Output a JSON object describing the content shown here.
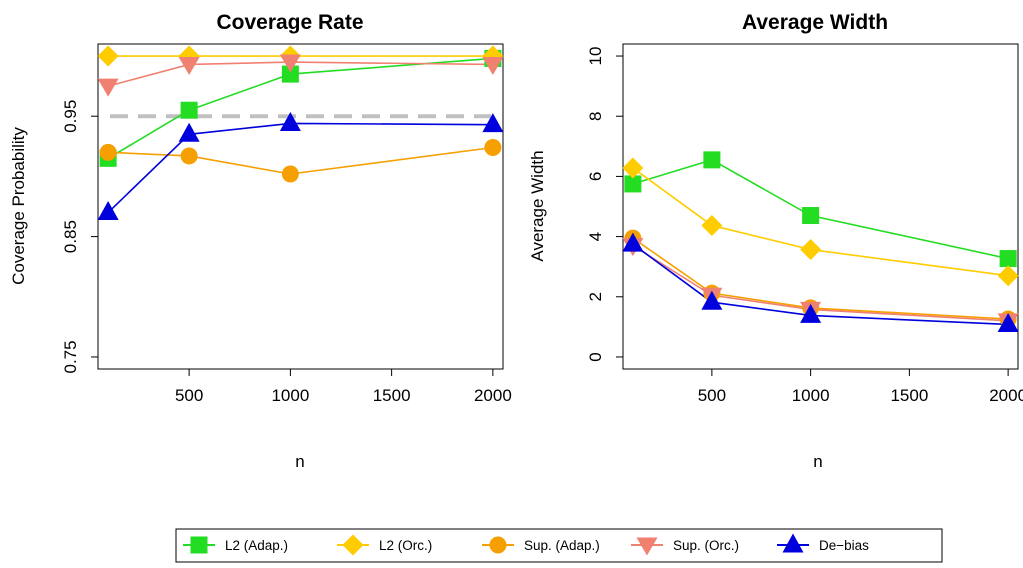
{
  "chart_data": [
    {
      "type": "line",
      "title": "Coverage Rate",
      "xlabel": "n",
      "ylabel": "Coverage Probability",
      "x": [
        100,
        500,
        1000,
        2000
      ],
      "xlim": [
        50,
        2050
      ],
      "ylim": [
        0.75,
        1.0
      ],
      "xticks": [
        500,
        1000,
        1500,
        2000
      ],
      "xtick_labels": [
        "500",
        "1000",
        "1500",
        "2000"
      ],
      "yticks": [
        0.75,
        0.85,
        0.95
      ],
      "ytick_labels": [
        "0.75",
        "0.85",
        "0.95"
      ],
      "reference_line": {
        "y": 0.95,
        "style": "dashed",
        "color": "#c0c0c0"
      },
      "series": [
        {
          "name": "L2 (Adap.)",
          "color": "#22dd22",
          "marker": "square",
          "values": [
            0.915,
            0.955,
            0.985,
            0.998
          ]
        },
        {
          "name": "L2 (Orc.)",
          "color": "#ffcc00",
          "marker": "diamond",
          "values": [
            1.0,
            1.0,
            1.0,
            1.0
          ]
        },
        {
          "name": "Sup. (Adap.)",
          "color": "#f5a000",
          "marker": "circle",
          "values": [
            0.92,
            0.917,
            0.902,
            0.924
          ]
        },
        {
          "name": "Sup. (Orc.)",
          "color": "#f08070",
          "marker": "triangle-down",
          "values": [
            0.975,
            0.993,
            0.995,
            0.993
          ]
        },
        {
          "name": "De−bias",
          "color": "#0000dd",
          "marker": "triangle-up",
          "values": [
            0.87,
            0.935,
            0.944,
            0.943
          ]
        }
      ]
    },
    {
      "type": "line",
      "title": "Average Width",
      "xlabel": "n",
      "ylabel": "Average Width",
      "x": [
        100,
        500,
        1000,
        2000
      ],
      "xlim": [
        50,
        2050
      ],
      "ylim": [
        0,
        10
      ],
      "xticks": [
        500,
        1000,
        1500,
        2000
      ],
      "xtick_labels": [
        "500",
        "1000",
        "1500",
        "2000"
      ],
      "yticks": [
        0,
        2,
        4,
        6,
        8,
        10
      ],
      "ytick_labels": [
        "0",
        "2",
        "4",
        "6",
        "8",
        "10"
      ],
      "series": [
        {
          "name": "L2 (Adap.)",
          "color": "#22dd22",
          "marker": "square",
          "values": [
            5.75,
            6.55,
            4.7,
            3.27
          ]
        },
        {
          "name": "L2 (Orc.)",
          "color": "#ffcc00",
          "marker": "diamond",
          "values": [
            6.28,
            4.37,
            3.57,
            2.7
          ]
        },
        {
          "name": "Sup. (Adap.)",
          "color": "#f5a000",
          "marker": "circle",
          "values": [
            3.95,
            2.12,
            1.63,
            1.26
          ]
        },
        {
          "name": "Sup. (Orc.)",
          "color": "#f08070",
          "marker": "triangle-down",
          "values": [
            3.7,
            2.05,
            1.58,
            1.2
          ]
        },
        {
          "name": "De−bias",
          "color": "#0000dd",
          "marker": "triangle-up",
          "values": [
            3.75,
            1.82,
            1.38,
            1.08
          ]
        }
      ]
    }
  ],
  "legend": {
    "placement": "bottom",
    "items": [
      {
        "label": "L2 (Adap.)",
        "color": "#22dd22",
        "marker": "square"
      },
      {
        "label": "L2 (Orc.)",
        "color": "#ffcc00",
        "marker": "diamond"
      },
      {
        "label": "Sup. (Adap.)",
        "color": "#f5a000",
        "marker": "circle"
      },
      {
        "label": "Sup. (Orc.)",
        "color": "#f08070",
        "marker": "triangle-down"
      },
      {
        "label": "De−bias",
        "color": "#0000dd",
        "marker": "triangle-up"
      }
    ]
  }
}
